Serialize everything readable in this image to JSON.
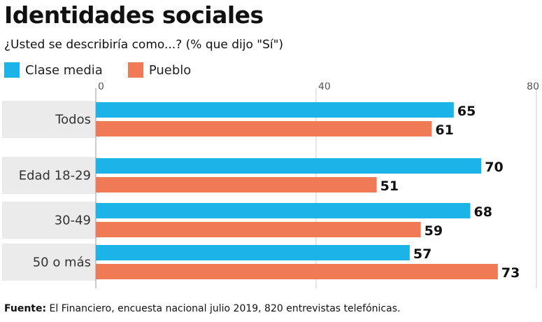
{
  "title": "Identidades sociales",
  "subtitle": "¿Usted se describiría como...? (% que dijo \"Sí\")",
  "source": {
    "label": "Fuente:",
    "text": "El Financiero, encuesta nacional julio 2019, 820 entrevistas telefónicas."
  },
  "colors": {
    "clase_media": "#1cb4e8",
    "pueblo": "#f07a55",
    "row_band": "#ebebeb",
    "grid": "#cccccc"
  },
  "chart_data": {
    "type": "bar",
    "orientation": "horizontal",
    "categories": [
      "Todos",
      "Edad 18-29",
      "30-49",
      "50 o más"
    ],
    "series": [
      {
        "name": "Clase media",
        "values": [
          65,
          70,
          68,
          57
        ]
      },
      {
        "name": "Pueblo",
        "values": [
          61,
          51,
          59,
          73
        ]
      }
    ],
    "xlim": [
      0,
      80
    ],
    "xticks": [
      "0",
      "40",
      "80"
    ],
    "legend": "top-left",
    "grid": true
  }
}
